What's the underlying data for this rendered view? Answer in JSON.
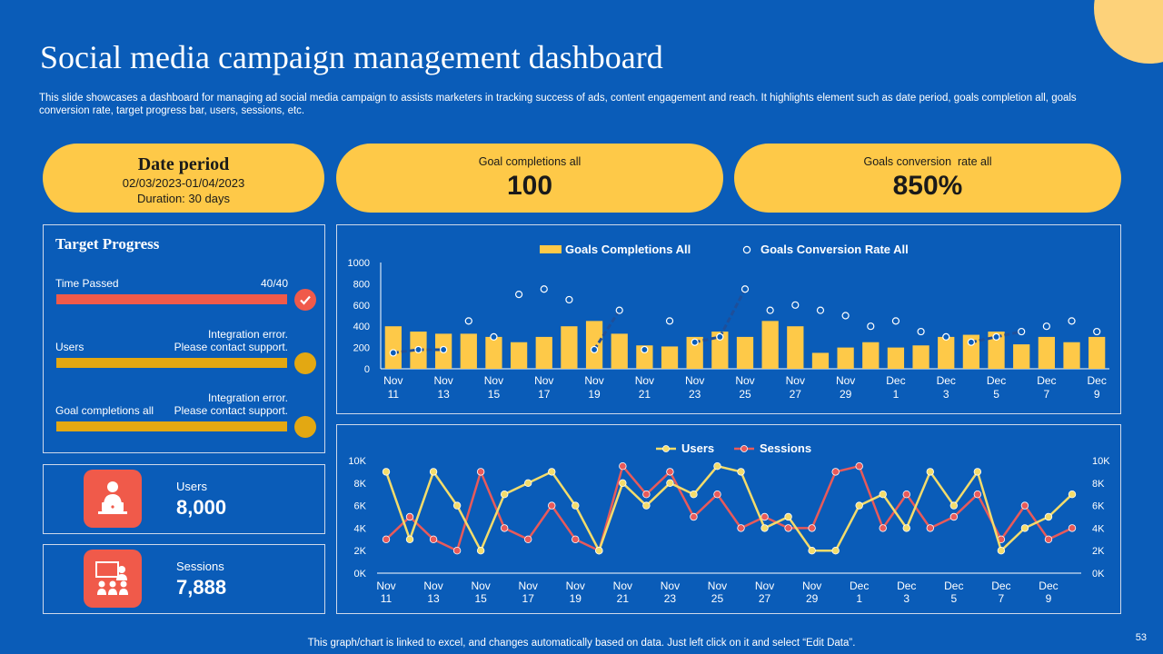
{
  "colors": {
    "background": "#0a5cb8",
    "accent_yellow": "#fec948",
    "accent_red": "#f05a4a",
    "line_yellow": "#f4dc6b",
    "line_red": "#e85a5a"
  },
  "header": {
    "title": "Social media campaign management dashboard",
    "subtitle": "This slide showcases a dashboard for managing ad social media campaign to assists marketers in tracking success of ads, content engagement and reach. It highlights element such as date period, goals completion all, goals conversion rate, target progress bar, users, sessions, etc."
  },
  "date_period": {
    "title": "Date period",
    "range": "02/03/2023-01/04/2023",
    "duration": "Duration: 30 days"
  },
  "goal_completions": {
    "label": "Goal completions all",
    "value": "100"
  },
  "goal_conversion": {
    "label": "Goals conversion  rate all",
    "value": "850%"
  },
  "target_progress": {
    "title": "Target Progress",
    "time_passed": {
      "label": "Time Passed",
      "value": "40/40",
      "progress": 1.0,
      "status_icon": "check-icon"
    },
    "users": {
      "label": "Users",
      "message": "Integration error.\nPlease contact support.",
      "progress": 1.0
    },
    "goals": {
      "label": "Goal completions all",
      "message": "Integration error.\nPlease contact support.",
      "progress": 1.0
    }
  },
  "kpis": {
    "users": {
      "label": "Users",
      "value": "8,000",
      "icon": "user-laptop-icon"
    },
    "sessions": {
      "label": "Sessions",
      "value": "7,888",
      "icon": "team-meeting-icon"
    }
  },
  "chart_data": [
    {
      "type": "bar+scatter",
      "legend": [
        "Goals Completions All",
        "Goals Conversion Rate All"
      ],
      "categories": [
        "Nov 11",
        "Nov 12",
        "Nov 13",
        "Nov 14",
        "Nov 15",
        "Nov 16",
        "Nov 17",
        "Nov 18",
        "Nov 19",
        "Nov 20",
        "Nov 21",
        "Nov 22",
        "Nov 23",
        "Nov 24",
        "Nov 25",
        "Nov 26",
        "Nov 27",
        "Nov 28",
        "Nov 29",
        "Nov 30",
        "Dec 1",
        "Dec 2",
        "Dec 3",
        "Dec 4",
        "Dec 5",
        "Dec 6",
        "Dec 7",
        "Dec 8",
        "Dec 9"
      ],
      "tick_labels": [
        [
          "Nov",
          "11"
        ],
        [
          "Nov",
          "13"
        ],
        [
          "Nov",
          "15"
        ],
        [
          "Nov",
          "17"
        ],
        [
          "Nov",
          "19"
        ],
        [
          "Nov",
          "21"
        ],
        [
          "Nov",
          "23"
        ],
        [
          "Nov",
          "25"
        ],
        [
          "Nov",
          "27"
        ],
        [
          "Nov",
          "29"
        ],
        [
          "Dec",
          "1"
        ],
        [
          "Dec",
          "3"
        ],
        [
          "Dec",
          "5"
        ],
        [
          "Dec",
          "7"
        ],
        [
          "Dec",
          "9"
        ]
      ],
      "y_ticks": [
        "0",
        "200",
        "400",
        "600",
        "800",
        "1000"
      ],
      "ylim": [
        0,
        1000
      ],
      "series": [
        {
          "name": "Goals Completions All",
          "values": [
            400,
            350,
            330,
            330,
            300,
            250,
            300,
            400,
            450,
            330,
            220,
            210,
            300,
            350,
            300,
            450,
            400,
            150,
            200,
            250,
            200,
            220,
            300,
            320,
            350,
            230,
            300,
            250,
            300
          ]
        },
        {
          "name": "Goals Conversion Rate All",
          "values": [
            150,
            180,
            180,
            450,
            300,
            700,
            750,
            650,
            180,
            550,
            180,
            450,
            250,
            300,
            750,
            550,
            600,
            550,
            500,
            400,
            450,
            350,
            300,
            250,
            300,
            350,
            400,
            450,
            350
          ]
        }
      ]
    },
    {
      "type": "line",
      "legend": [
        "Users",
        "Sessions"
      ],
      "categories": [
        "Nov 11",
        "Nov 12",
        "Nov 13",
        "Nov 14",
        "Nov 15",
        "Nov 16",
        "Nov 17",
        "Nov 18",
        "Nov 19",
        "Nov 20",
        "Nov 21",
        "Nov 22",
        "Nov 23",
        "Nov 24",
        "Nov 25",
        "Nov 26",
        "Nov 27",
        "Nov 28",
        "Nov 29",
        "Nov 30",
        "Dec 1",
        "Dec 2",
        "Dec 3",
        "Dec 4",
        "Dec 5",
        "Dec 6",
        "Dec 7",
        "Dec 8",
        "Dec 9",
        "Dec 10"
      ],
      "tick_labels": [
        [
          "Nov",
          "11"
        ],
        [
          "Nov",
          "13"
        ],
        [
          "Nov",
          "15"
        ],
        [
          "Nov",
          "17"
        ],
        [
          "Nov",
          "19"
        ],
        [
          "Nov",
          "21"
        ],
        [
          "Nov",
          "23"
        ],
        [
          "Nov",
          "25"
        ],
        [
          "Nov",
          "27"
        ],
        [
          "Nov",
          "29"
        ],
        [
          "Dec",
          "1"
        ],
        [
          "Dec",
          "3"
        ],
        [
          "Dec",
          "5"
        ],
        [
          "Dec",
          "7"
        ],
        [
          "Dec",
          "9"
        ]
      ],
      "y_ticks": [
        "0K",
        "2K",
        "4K",
        "6K",
        "8K",
        "10K"
      ],
      "ylim": [
        0,
        10000
      ],
      "series": [
        {
          "name": "Users",
          "values": [
            9000,
            3000,
            9000,
            6000,
            2000,
            7000,
            8000,
            9000,
            6000,
            2000,
            8000,
            6000,
            8000,
            7000,
            9500,
            9000,
            4000,
            5000,
            2000,
            2000,
            6000,
            7000,
            4000,
            9000,
            6000,
            9000,
            2000,
            4000,
            5000,
            7000
          ]
        },
        {
          "name": "Sessions",
          "values": [
            3000,
            5000,
            3000,
            2000,
            9000,
            4000,
            3000,
            6000,
            3000,
            2000,
            9500,
            7000,
            9000,
            5000,
            7000,
            4000,
            5000,
            4000,
            4000,
            9000,
            9500,
            4000,
            7000,
            4000,
            5000,
            7000,
            3000,
            6000,
            3000,
            4000
          ]
        }
      ]
    }
  ],
  "footer": {
    "note": "This graph/chart is linked to excel,  and changes automatically based on data. Just left click on it and select “Edit Data”.",
    "page_number": "53"
  }
}
